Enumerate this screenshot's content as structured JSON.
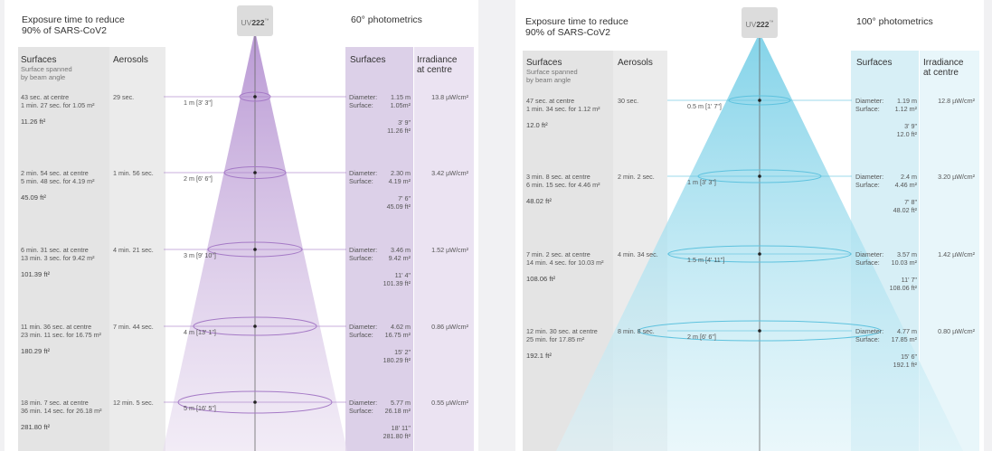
{
  "colors": {
    "left_accent": "#a57ac6",
    "left_band": "#dcd0e8",
    "left_band_light": "#ebe3f2",
    "right_accent": "#5ec2de",
    "right_band": "#d7eff6",
    "right_band_light": "#e8f6fa",
    "gray_band": "#e4e4e4",
    "gray_band_light": "#ebebeb"
  },
  "left": {
    "title_line1": "Exposure time to reduce",
    "title_line2": "90% of SARS-CoV2",
    "logo_uv": "UV",
    "logo_num": "222",
    "logo_tm": "™",
    "photometrics": "60° photometrics",
    "surfaces_header": "Surfaces",
    "surfaces_sub1": "Surface spanned",
    "surfaces_sub2": "by beam angle",
    "aerosols_header": "Aerosols",
    "surfaces_right_header": "Surfaces",
    "irradiance_header1": "Irradiance",
    "irradiance_header2": "at centre",
    "rows": [
      {
        "dist": "1 m [3' 3\"]",
        "time1": "43 sec. at centre",
        "time2": "1 min. 27 sec. for 1.05 m²",
        "area": "11.26 ft²",
        "aerosol": "29 sec.",
        "diam": "1.15 m",
        "surf": "1.05m²",
        "imp1": "3' 9\"",
        "imp2": "11.26 ft²",
        "irr": "13.8 µW/cm²"
      },
      {
        "dist": "2 m [6' 6\"]",
        "time1": "2 min. 54 sec. at centre",
        "time2": "5 min. 48 sec. for 4.19 m²",
        "area": "45.09 ft²",
        "aerosol": "1 min. 56 sec.",
        "diam": "2.30 m",
        "surf": "4.19 m²",
        "imp1": "7' 6\"",
        "imp2": "45.09 ft²",
        "irr": "3.42 µW/cm²"
      },
      {
        "dist": "3 m [9' 10\"]",
        "time1": "6 min. 31 sec. at centre",
        "time2": "13 min. 3 sec. for 9.42 m²",
        "area": "101.39 ft²",
        "aerosol": "4 min. 21 sec.",
        "diam": "3.46 m",
        "surf": "9.42 m²",
        "imp1": "11' 4\"",
        "imp2": "101.39 ft²",
        "irr": "1.52 µW/cm²"
      },
      {
        "dist": "4 m [13' 1\"]",
        "time1": "11 min. 36 sec. at centre",
        "time2": "23 min. 11 sec. for 16.75 m²",
        "area": "180.29 ft²",
        "aerosol": "7 min. 44 sec.",
        "diam": "4.62 m",
        "surf": "16.75 m²",
        "imp1": "15' 2\"",
        "imp2": "180.29 ft²",
        "irr": "0.86 µW/cm²"
      },
      {
        "dist": "5 m [16' 5\"]",
        "time1": "18 min. 7 sec. at centre",
        "time2": "36 min. 14 sec. for 26.18 m²",
        "area": "281.80 ft²",
        "aerosol": "12 min. 5 sec.",
        "diam": "5.77 m",
        "surf": "26.18 m²",
        "imp1": "18' 11\"",
        "imp2": "281.80 ft²",
        "irr": "0.55 µW/cm²"
      }
    ]
  },
  "right": {
    "title_line1": "Exposure time to reduce",
    "title_line2": "90% of SARS-CoV2",
    "logo_uv": "UV",
    "logo_num": "222",
    "logo_tm": "™",
    "photometrics": "100° photometrics",
    "surfaces_header": "Surfaces",
    "surfaces_sub1": "Surface spanned",
    "surfaces_sub2": "by beam angle",
    "aerosols_header": "Aerosols",
    "surfaces_right_header": "Surfaces",
    "irradiance_header1": "Irradiance",
    "irradiance_header2": "at centre",
    "rows": [
      {
        "dist": "0.5 m [1' 7\"]",
        "time1": "47 sec. at centre",
        "time2": "1 min. 34 sec. for 1.12 m²",
        "area": "12.0 ft²",
        "aerosol": "30 sec.",
        "diam": "1.19 m",
        "surf": "1.12 m²",
        "imp1": "3' 9\"",
        "imp2": "12.0 ft²",
        "irr": "12.8 µW/cm²"
      },
      {
        "dist": "1 m [3' 3\"]",
        "time1": "3 min. 8 sec. at centre",
        "time2": "6 min. 15 sec. for 4.46 m²",
        "area": "48.02 ft²",
        "aerosol": "2 min. 2 sec.",
        "diam": "2.4 m",
        "surf": "4.46 m²",
        "imp1": "7' 8\"",
        "imp2": "48.02 ft²",
        "irr": "3.20 µW/cm²"
      },
      {
        "dist": "1.5 m [4' 11\"]",
        "time1": "7 min. 2 sec. at centre",
        "time2": "14 min. 4 sec. for 10.03 m²",
        "area": "108.06 ft²",
        "aerosol": "4 min. 34 sec.",
        "diam": "3.57 m",
        "surf": "10.03 m²",
        "imp1": "11' 7\"",
        "imp2": "108.06 ft²",
        "irr": "1.42 µW/cm²"
      },
      {
        "dist": "2 m [6' 6\"]",
        "time1": "12 min. 30 sec. at centre",
        "time2": "25 min. for 17.85 m²",
        "area": "192.1 ft²",
        "aerosol": "8 min. 8 sec.",
        "diam": "4.77 m",
        "surf": "17.85 m²",
        "imp1": "15' 6\"",
        "imp2": "192.1 ft²",
        "irr": "0.80 µW/cm²"
      }
    ]
  },
  "labels": {
    "diameter": "Diameter:",
    "surface": "Surface:"
  }
}
